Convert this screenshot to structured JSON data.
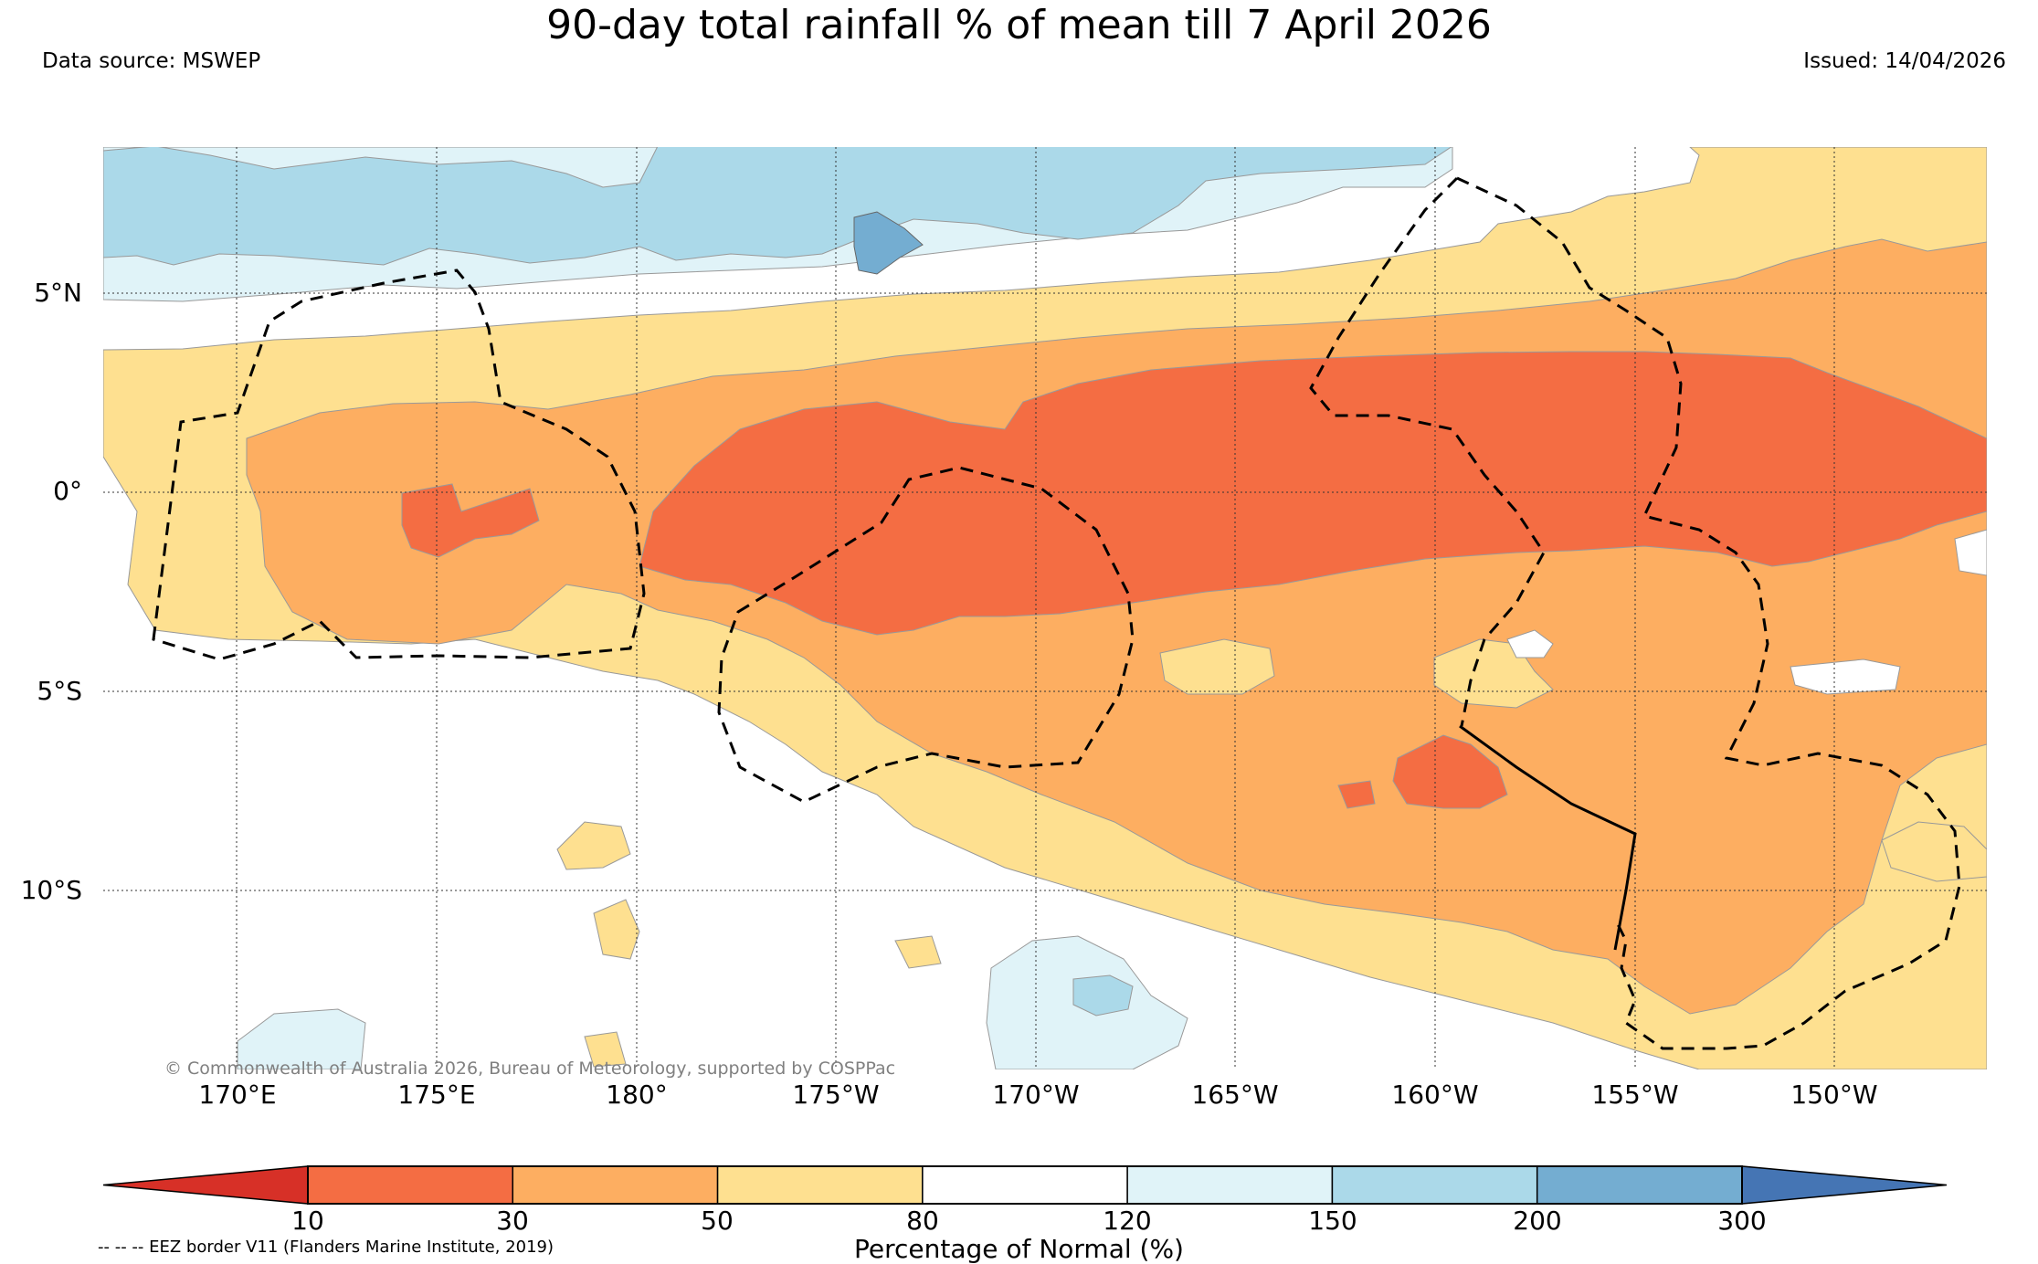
{
  "header": {
    "title": "90-day total rainfall % of mean till 7 April 2026",
    "data_source": "Data source: MSWEP",
    "issued": "Issued: 14/04/2026"
  },
  "map": {
    "lat_labels": [
      "5°N",
      "0°",
      "5°S",
      "10°S"
    ],
    "lon_labels": [
      "170°E",
      "175°E",
      "180°",
      "175°W",
      "170°W",
      "165°W",
      "160°W",
      "155°W",
      "150°W"
    ],
    "copyright": "© Commonwealth of Australia 2026, Bureau of Meteorology, supported by COSPPac",
    "eez_note": "-- -- -- EEZ border V11 (Flanders Marine Institute, 2019)"
  },
  "legend": {
    "title": "Percentage of Normal (%)",
    "ticks": [
      "10",
      "30",
      "50",
      "80",
      "120",
      "150",
      "200",
      "300"
    ],
    "bins": [
      {
        "label": "<10",
        "color": "#d73027"
      },
      {
        "label": "10-30",
        "color": "#f46d43"
      },
      {
        "label": "30-50",
        "color": "#fdae61"
      },
      {
        "label": "50-80",
        "color": "#fee090"
      },
      {
        "label": "80-120",
        "color": "#ffffff"
      },
      {
        "label": "120-150",
        "color": "#e0f3f8"
      },
      {
        "label": "150-200",
        "color": "#abd9e9"
      },
      {
        "label": "200-300",
        "color": "#74add1"
      },
      {
        "label": ">300",
        "color": "#4575b4"
      }
    ]
  },
  "colors": {
    "c10_30": "#f46d43",
    "c30_50": "#fdae61",
    "c50_80": "#fee090",
    "c120_150": "#e0f3f8",
    "c150_200": "#abd9e9",
    "c200_300": "#74add1"
  }
}
